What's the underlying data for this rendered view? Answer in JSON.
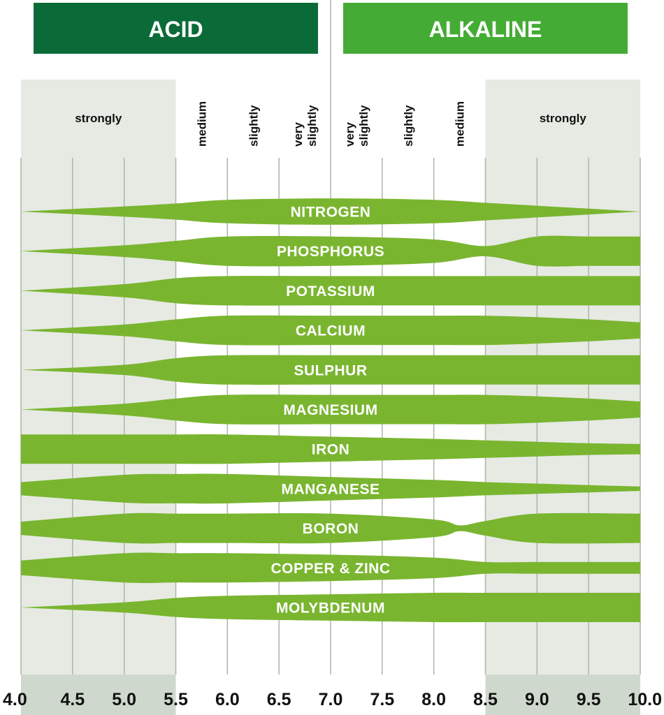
{
  "colors": {
    "acid_header": "#0b6b38",
    "alkaline_header": "#44ac34",
    "band": "#7ab530",
    "shade": "#e6eae3",
    "shade_bottom": "#cfd8cc",
    "grid": "#a9b7a4"
  },
  "chart_data": {
    "type": "area",
    "xlim": [
      4.0,
      10.0
    ],
    "ticks": [
      "4.0",
      "4.5",
      "5.0",
      "5.5",
      "6.0",
      "6.5",
      "7.0",
      "7.5",
      "8.0",
      "8.5",
      "9.0",
      "9.5",
      "10.0"
    ],
    "headers": [
      {
        "label": "ACID",
        "from": 4.0,
        "to": 7.0,
        "color": "#0b6b38"
      },
      {
        "label": "ALKALINE",
        "from": 7.0,
        "to": 10.0,
        "color": "#44ac34"
      }
    ],
    "levels": [
      {
        "label": "strongly",
        "from": 4.0,
        "to": 5.5,
        "shaded": true,
        "vertical": false
      },
      {
        "label": "medium",
        "from": 5.5,
        "to": 6.0,
        "vertical": true
      },
      {
        "label": "slightly",
        "from": 6.0,
        "to": 6.5,
        "vertical": true
      },
      {
        "label": "very slightly",
        "from": 6.5,
        "to": 7.0,
        "vertical": true
      },
      {
        "label": "very slightly",
        "from": 7.0,
        "to": 7.5,
        "vertical": true
      },
      {
        "label": "slightly",
        "from": 7.5,
        "to": 8.0,
        "vertical": true
      },
      {
        "label": "medium",
        "from": 8.0,
        "to": 8.5,
        "vertical": true
      },
      {
        "label": "strongly",
        "from": 8.5,
        "to": 10.0,
        "shaded": true,
        "vertical": false
      }
    ],
    "series": [
      {
        "name": "NITROGEN",
        "x": [
          4.0,
          5.0,
          5.5,
          6.0,
          7.0,
          8.0,
          8.5,
          9.0,
          9.5,
          10.0
        ],
        "width": [
          0.0,
          0.35,
          0.55,
          0.8,
          0.9,
          0.8,
          0.6,
          0.4,
          0.2,
          0.0
        ]
      },
      {
        "name": "PHOSPHORUS",
        "x": [
          4.0,
          5.0,
          5.5,
          6.0,
          7.0,
          8.0,
          8.5,
          9.0,
          9.5,
          10.0
        ],
        "width": [
          0.0,
          0.4,
          0.7,
          1.0,
          1.0,
          0.8,
          0.35,
          1.0,
          1.0,
          1.0
        ]
      },
      {
        "name": "POTASSIUM",
        "x": [
          4.0,
          5.0,
          5.5,
          6.0,
          7.0,
          8.0,
          8.5,
          9.0,
          9.5,
          10.0
        ],
        "width": [
          0.0,
          0.45,
          0.85,
          1.0,
          1.0,
          1.0,
          1.0,
          1.0,
          1.0,
          1.0
        ]
      },
      {
        "name": "CALCIUM",
        "x": [
          4.0,
          5.0,
          5.5,
          6.0,
          7.0,
          8.0,
          8.5,
          9.0,
          9.5,
          10.0
        ],
        "width": [
          0.0,
          0.4,
          0.75,
          1.0,
          1.0,
          1.0,
          1.0,
          0.9,
          0.75,
          0.55
        ]
      },
      {
        "name": "SULPHUR",
        "x": [
          4.0,
          5.0,
          5.5,
          6.0,
          7.0,
          8.0,
          8.5,
          9.0,
          9.5,
          10.0
        ],
        "width": [
          0.0,
          0.35,
          0.8,
          1.0,
          1.0,
          1.0,
          1.0,
          1.0,
          1.0,
          1.0
        ]
      },
      {
        "name": "MAGNESIUM",
        "x": [
          4.0,
          5.0,
          5.5,
          6.0,
          7.0,
          8.0,
          8.5,
          9.0,
          9.5,
          10.0
        ],
        "width": [
          0.0,
          0.4,
          0.75,
          1.0,
          1.0,
          1.0,
          1.0,
          0.9,
          0.75,
          0.55
        ]
      },
      {
        "name": "IRON",
        "x": [
          4.0,
          5.0,
          5.5,
          6.0,
          7.0,
          8.0,
          8.5,
          9.0,
          9.5,
          10.0
        ],
        "width": [
          1.0,
          1.0,
          1.0,
          1.0,
          0.85,
          0.7,
          0.6,
          0.5,
          0.4,
          0.35
        ]
      },
      {
        "name": "MANGANESE",
        "x": [
          4.0,
          5.0,
          5.5,
          6.0,
          7.0,
          8.0,
          8.5,
          9.0,
          9.5,
          10.0
        ],
        "width": [
          0.45,
          0.95,
          1.0,
          1.0,
          0.8,
          0.6,
          0.45,
          0.35,
          0.25,
          0.15
        ]
      },
      {
        "name": "BORON",
        "x": [
          4.0,
          5.0,
          5.5,
          6.0,
          7.0,
          8.0,
          8.25,
          8.5,
          9.0,
          10.0
        ],
        "width": [
          0.45,
          1.0,
          1.0,
          1.0,
          1.0,
          0.6,
          0.2,
          0.5,
          1.0,
          1.0
        ]
      },
      {
        "name": "COPPER & ZINC",
        "x": [
          4.0,
          5.0,
          5.5,
          6.0,
          7.0,
          8.0,
          8.5,
          9.0,
          9.5,
          10.0
        ],
        "width": [
          0.5,
          1.0,
          1.0,
          1.0,
          0.9,
          0.7,
          0.4,
          0.4,
          0.4,
          0.4
        ]
      },
      {
        "name": "MOLYBDENUM",
        "x": [
          4.0,
          5.0,
          5.5,
          6.0,
          7.0,
          8.0,
          8.5,
          9.0,
          9.5,
          10.0
        ],
        "width": [
          0.0,
          0.35,
          0.65,
          0.8,
          0.9,
          1.0,
          1.0,
          1.0,
          1.0,
          1.0
        ]
      }
    ]
  }
}
